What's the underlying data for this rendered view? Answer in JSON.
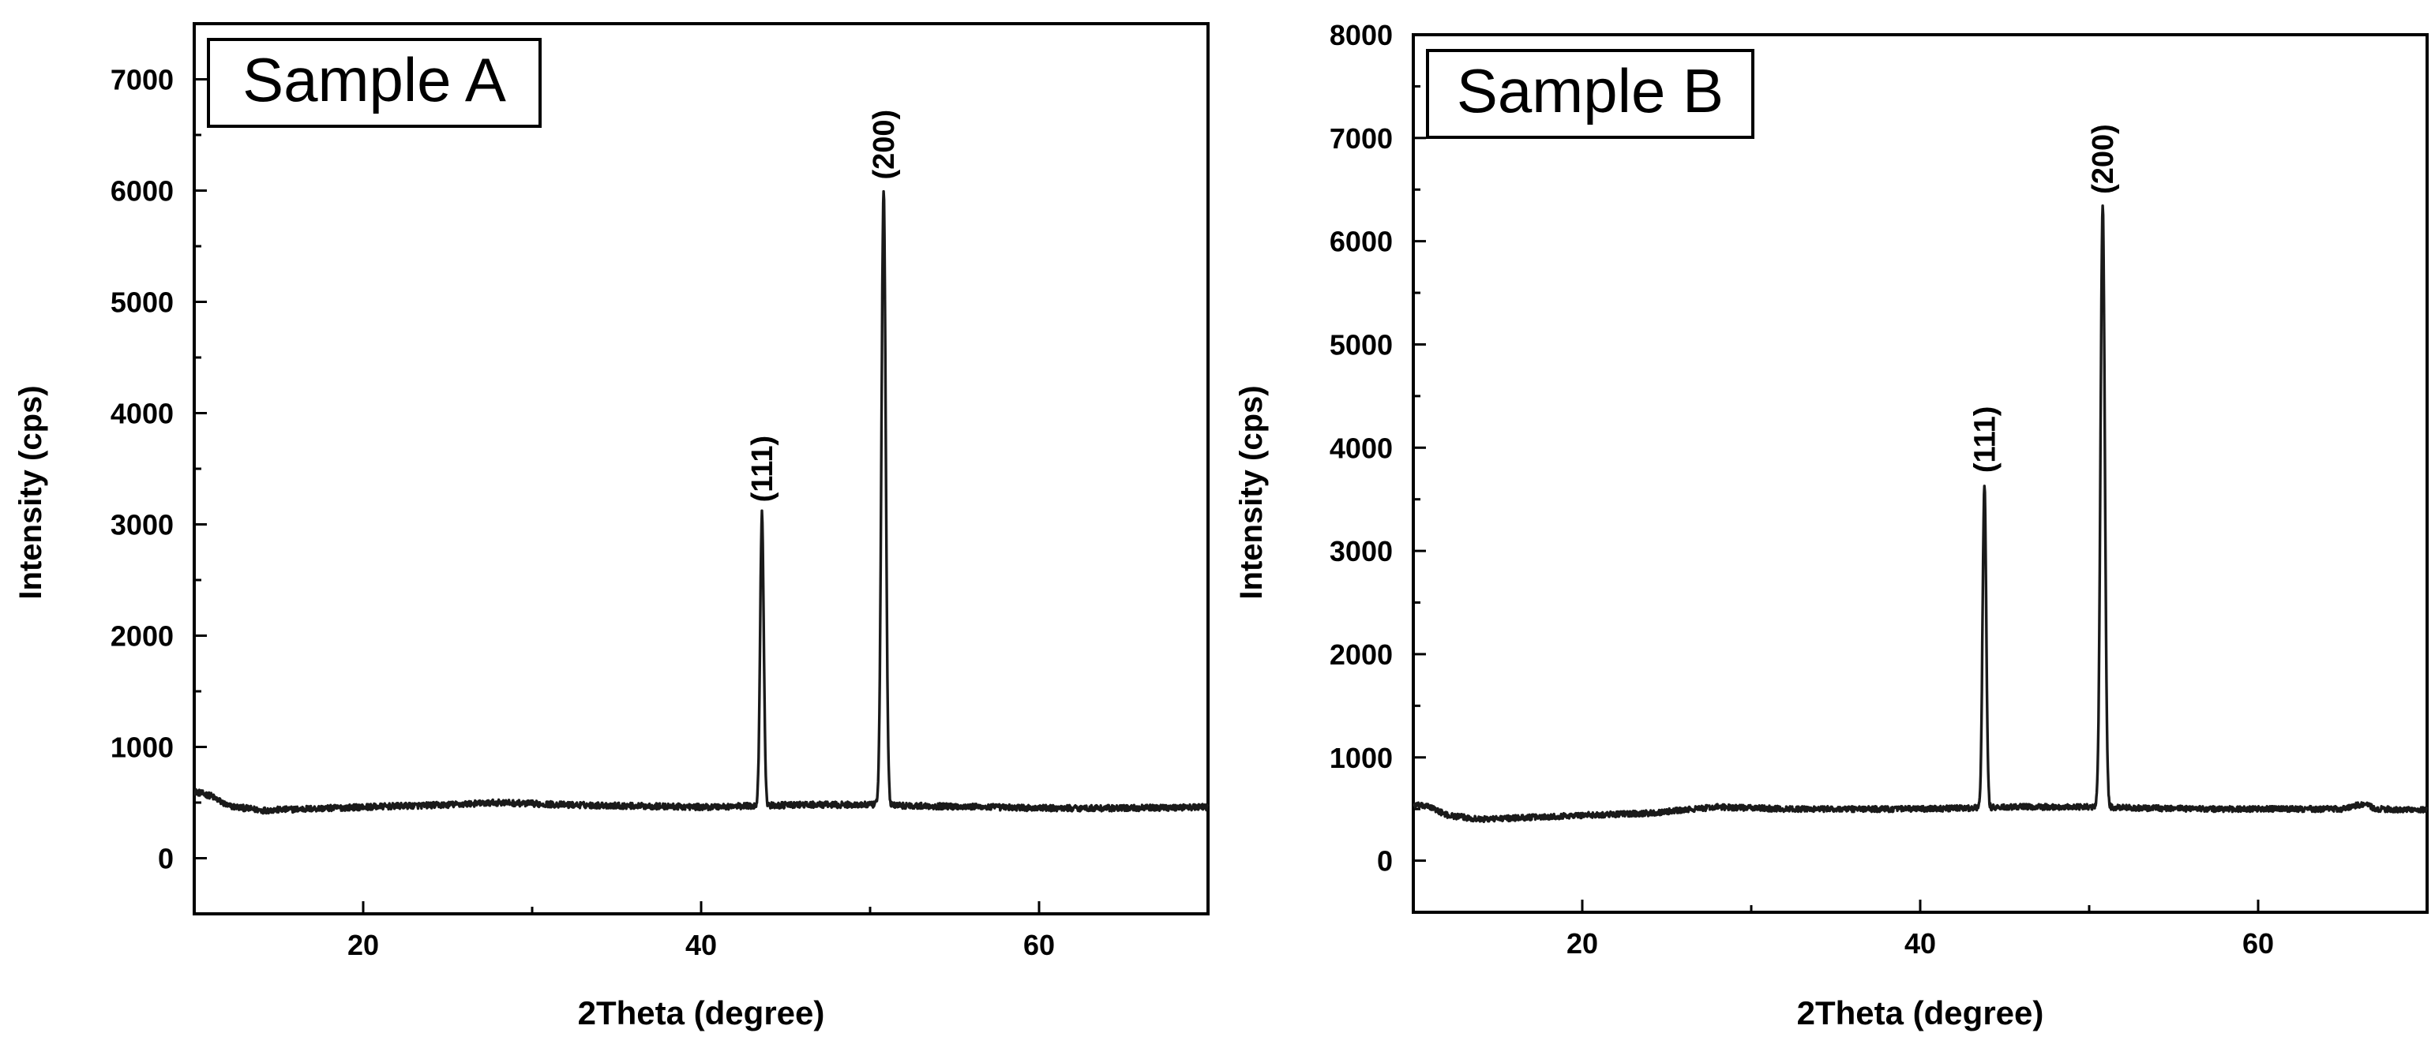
{
  "figure": {
    "colors": {
      "line": "#1a1a1a",
      "axis": "#000000",
      "background": "#ffffff"
    }
  },
  "chart_data": [
    {
      "id": "panel-a",
      "type": "line",
      "inset_label": "Sample A",
      "xlabel": "2Theta (degree)",
      "ylabel": "Intensity (cps)",
      "xlim": [
        10,
        70
      ],
      "ylim": [
        -500,
        7500
      ],
      "xticks": [
        20,
        40,
        60
      ],
      "yticks": [
        0,
        1000,
        2000,
        3000,
        4000,
        5000,
        6000,
        7000
      ],
      "grid": false,
      "baseline": [
        [
          10,
          600
        ],
        [
          11,
          560
        ],
        [
          12,
          470
        ],
        [
          14,
          430
        ],
        [
          16,
          440
        ],
        [
          20,
          460
        ],
        [
          25,
          480
        ],
        [
          28,
          500
        ],
        [
          32,
          480
        ],
        [
          36,
          470
        ],
        [
          40,
          460
        ],
        [
          43,
          470
        ],
        [
          46,
          480
        ],
        [
          50,
          480
        ],
        [
          53,
          470
        ],
        [
          57,
          460
        ],
        [
          60,
          450
        ],
        [
          65,
          450
        ],
        [
          70,
          460
        ]
      ],
      "peaks": [
        {
          "label": "(111)",
          "x": 43.6,
          "y": 3100,
          "width": 0.25
        },
        {
          "label": "(200)",
          "x": 50.8,
          "y": 6000,
          "width": 0.3
        }
      ]
    },
    {
      "id": "panel-b",
      "type": "line",
      "inset_label": "Sample B",
      "xlabel": "2Theta (degree)",
      "ylabel": "Intensity (cps)",
      "xlim": [
        10,
        70
      ],
      "ylim": [
        -500,
        8000
      ],
      "xticks": [
        20,
        40,
        60
      ],
      "yticks": [
        0,
        1000,
        2000,
        3000,
        4000,
        5000,
        6000,
        7000,
        8000
      ],
      "grid": false,
      "baseline": [
        [
          10,
          540
        ],
        [
          11,
          520
        ],
        [
          12,
          440
        ],
        [
          14,
          400
        ],
        [
          17,
          420
        ],
        [
          20,
          440
        ],
        [
          24,
          460
        ],
        [
          28,
          520
        ],
        [
          32,
          500
        ],
        [
          36,
          500
        ],
        [
          40,
          500
        ],
        [
          43,
          510
        ],
        [
          46,
          520
        ],
        [
          50,
          520
        ],
        [
          53,
          510
        ],
        [
          57,
          500
        ],
        [
          60,
          500
        ],
        [
          65,
          500
        ],
        [
          66.2,
          550
        ],
        [
          67,
          500
        ],
        [
          70,
          490
        ]
      ],
      "peaks": [
        {
          "label": "(111)",
          "x": 43.8,
          "y": 3650,
          "width": 0.25
        },
        {
          "label": "(200)",
          "x": 50.8,
          "y": 6350,
          "width": 0.3
        }
      ]
    }
  ]
}
